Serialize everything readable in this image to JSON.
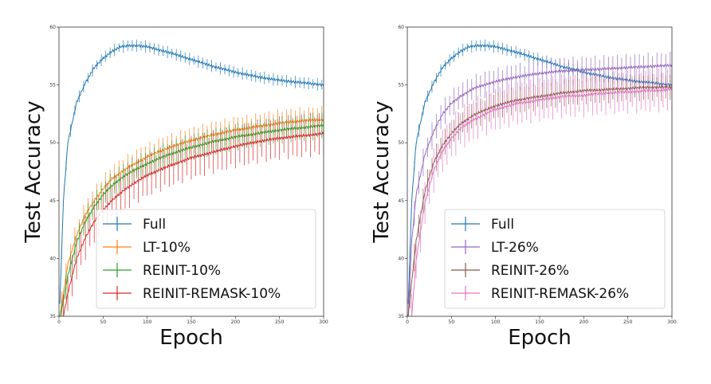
{
  "chart_data": [
    {
      "type": "line",
      "xlabel": "Epoch",
      "ylabel": "Test Accuracy",
      "xlim": [
        0,
        300
      ],
      "ylim": [
        35,
        60
      ],
      "xticks": [
        0,
        50,
        100,
        150,
        200,
        250,
        300
      ],
      "yticks": [
        35,
        40,
        45,
        50,
        55,
        60
      ],
      "legend_position": "bottom-right",
      "series": [
        {
          "name": "Full",
          "color": "#1f77b4",
          "points": [
            [
              1,
              36
            ],
            [
              5,
              45
            ],
            [
              10,
              50
            ],
            [
              20,
              53.5
            ],
            [
              30,
              55.2
            ],
            [
              40,
              56.5
            ],
            [
              50,
              57.3
            ],
            [
              60,
              57.9
            ],
            [
              70,
              58.3
            ],
            [
              80,
              58.4
            ],
            [
              90,
              58.4
            ],
            [
              100,
              58.3
            ],
            [
              110,
              58.1
            ],
            [
              125,
              57.8
            ],
            [
              150,
              57.2
            ],
            [
              175,
              56.6
            ],
            [
              200,
              56.1
            ],
            [
              225,
              55.7
            ],
            [
              250,
              55.4
            ],
            [
              275,
              55.2
            ],
            [
              300,
              55.0
            ]
          ]
        },
        {
          "name": "LT-10%",
          "color": "#ff7f0e",
          "points": [
            [
              1,
              35
            ],
            [
              5,
              37
            ],
            [
              10,
              39.5
            ],
            [
              20,
              42
            ],
            [
              30,
              43.8
            ],
            [
              40,
              45
            ],
            [
              50,
              46
            ],
            [
              60,
              46.9
            ],
            [
              75,
              47.7
            ],
            [
              100,
              48.8
            ],
            [
              125,
              49.6
            ],
            [
              150,
              50.2
            ],
            [
              175,
              50.7
            ],
            [
              200,
              51.1
            ],
            [
              225,
              51.4
            ],
            [
              250,
              51.7
            ],
            [
              275,
              51.9
            ],
            [
              300,
              52.0
            ]
          ]
        },
        {
          "name": "REINIT-10%",
          "color": "#2ca02c",
          "points": [
            [
              1,
              35
            ],
            [
              5,
              36.3
            ],
            [
              10,
              38.5
            ],
            [
              20,
              41.4
            ],
            [
              30,
              43.2
            ],
            [
              40,
              44.5
            ],
            [
              50,
              45.5
            ],
            [
              60,
              46.3
            ],
            [
              75,
              47.2
            ],
            [
              100,
              48.2
            ],
            [
              125,
              49
            ],
            [
              150,
              49.6
            ],
            [
              175,
              50.1
            ],
            [
              200,
              50.5
            ],
            [
              225,
              50.8
            ],
            [
              250,
              51.1
            ],
            [
              275,
              51.3
            ],
            [
              300,
              51.5
            ]
          ]
        },
        {
          "name": "REINIT-REMASK-10%",
          "color": "#d62728",
          "points": [
            [
              5,
              35
            ],
            [
              10,
              37
            ],
            [
              20,
              40
            ],
            [
              30,
              41.8
            ],
            [
              40,
              43.2
            ],
            [
              50,
              44.2
            ],
            [
              60,
              45
            ],
            [
              75,
              46
            ],
            [
              100,
              47.2
            ],
            [
              125,
              48
            ],
            [
              150,
              48.7
            ],
            [
              175,
              49.2
            ],
            [
              200,
              49.7
            ],
            [
              225,
              50.1
            ],
            [
              250,
              50.4
            ],
            [
              275,
              50.6
            ],
            [
              300,
              50.8
            ]
          ]
        }
      ]
    },
    {
      "type": "line",
      "xlabel": "Epoch",
      "ylabel": "Test Accuracy",
      "xlim": [
        0,
        300
      ],
      "ylim": [
        35,
        60
      ],
      "xticks": [
        0,
        50,
        100,
        150,
        200,
        250,
        300
      ],
      "yticks": [
        35,
        40,
        45,
        50,
        55,
        60
      ],
      "legend_position": "bottom-right",
      "series": [
        {
          "name": "Full",
          "color": "#1f77b4",
          "points": [
            [
              1,
              36
            ],
            [
              5,
              45
            ],
            [
              10,
              50
            ],
            [
              20,
              53.5
            ],
            [
              30,
              55.2
            ],
            [
              40,
              56.5
            ],
            [
              50,
              57.3
            ],
            [
              60,
              57.9
            ],
            [
              70,
              58.3
            ],
            [
              80,
              58.4
            ],
            [
              90,
              58.4
            ],
            [
              100,
              58.3
            ],
            [
              110,
              58.1
            ],
            [
              125,
              57.8
            ],
            [
              150,
              57.2
            ],
            [
              175,
              56.6
            ],
            [
              200,
              56.1
            ],
            [
              225,
              55.7
            ],
            [
              250,
              55.4
            ],
            [
              275,
              55.2
            ],
            [
              300,
              55.0
            ]
          ]
        },
        {
          "name": "LT-26%",
          "color": "#9467bd",
          "points": [
            [
              1,
              35
            ],
            [
              5,
              41.5
            ],
            [
              10,
              45.5
            ],
            [
              20,
              49
            ],
            [
              30,
              51
            ],
            [
              40,
              52.5
            ],
            [
              50,
              53.4
            ],
            [
              60,
              54
            ],
            [
              75,
              54.7
            ],
            [
              100,
              55.3
            ],
            [
              125,
              55.7
            ],
            [
              150,
              56
            ],
            [
              175,
              56.2
            ],
            [
              200,
              56.3
            ],
            [
              225,
              56.4
            ],
            [
              250,
              56.5
            ],
            [
              275,
              56.6
            ],
            [
              300,
              56.7
            ]
          ]
        },
        {
          "name": "REINIT-26%",
          "color": "#8c564b",
          "points": [
            [
              1,
              35
            ],
            [
              5,
              38
            ],
            [
              10,
              41.5
            ],
            [
              20,
              45.8
            ],
            [
              30,
              48.3
            ],
            [
              40,
              49.8
            ],
            [
              50,
              50.8
            ],
            [
              60,
              51.6
            ],
            [
              75,
              52.4
            ],
            [
              100,
              53.2
            ],
            [
              125,
              53.7
            ],
            [
              150,
              54
            ],
            [
              175,
              54.3
            ],
            [
              200,
              54.5
            ],
            [
              225,
              54.6
            ],
            [
              250,
              54.7
            ],
            [
              275,
              54.8
            ],
            [
              300,
              54.8
            ]
          ]
        },
        {
          "name": "REINIT-REMASK-26%",
          "color": "#e377c2",
          "points": [
            [
              5,
              35
            ],
            [
              10,
              39.8
            ],
            [
              20,
              44.8
            ],
            [
              30,
              47.6
            ],
            [
              40,
              49.3
            ],
            [
              50,
              50.4
            ],
            [
              60,
              51.2
            ],
            [
              75,
              52
            ],
            [
              100,
              52.9
            ],
            [
              125,
              53.4
            ],
            [
              150,
              53.7
            ],
            [
              175,
              54
            ],
            [
              200,
              54.1
            ],
            [
              225,
              54.3
            ],
            [
              250,
              54.4
            ],
            [
              275,
              54.5
            ],
            [
              300,
              54.6
            ]
          ]
        }
      ]
    }
  ]
}
